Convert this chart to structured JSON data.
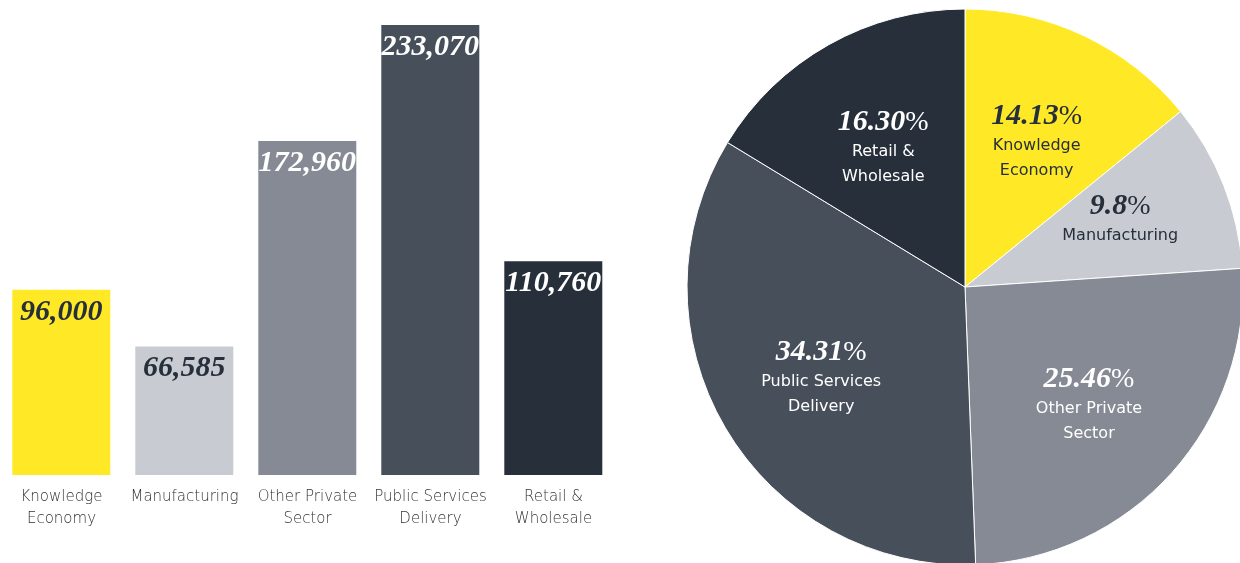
{
  "chart_data": [
    {
      "type": "bar",
      "categories": [
        "Knowledge Economy",
        "Manufacturing",
        "Other Private Sector",
        "Public Services Delivery",
        "Retail & Wholesale"
      ],
      "values": [
        96000,
        66585,
        172960,
        233070,
        110760
      ],
      "colors": [
        "#ffe926",
        "#c8cbd2",
        "#858a95",
        "#474f5b",
        "#262f3a"
      ],
      "value_labels": [
        "96,000",
        "66,585",
        "172,960",
        "233,070",
        "110,760"
      ],
      "tick_labels": "x",
      "grid": false,
      "legend": false
    },
    {
      "type": "pie",
      "categories": [
        "Knowledge Economy",
        "Manufacturing",
        "Other Private Sector",
        "Public Services Delivery",
        "Retail & Wholesale"
      ],
      "values": [
        14.13,
        9.8,
        25.46,
        34.31,
        16.3
      ],
      "value_labels": [
        "14.13%",
        "9.8%",
        "25.46%",
        "34.31%",
        "16.30%"
      ],
      "colors": [
        "#ffe926",
        "#c8cbd2",
        "#858a95",
        "#474f5b",
        "#262f3a"
      ],
      "legend": false
    }
  ]
}
